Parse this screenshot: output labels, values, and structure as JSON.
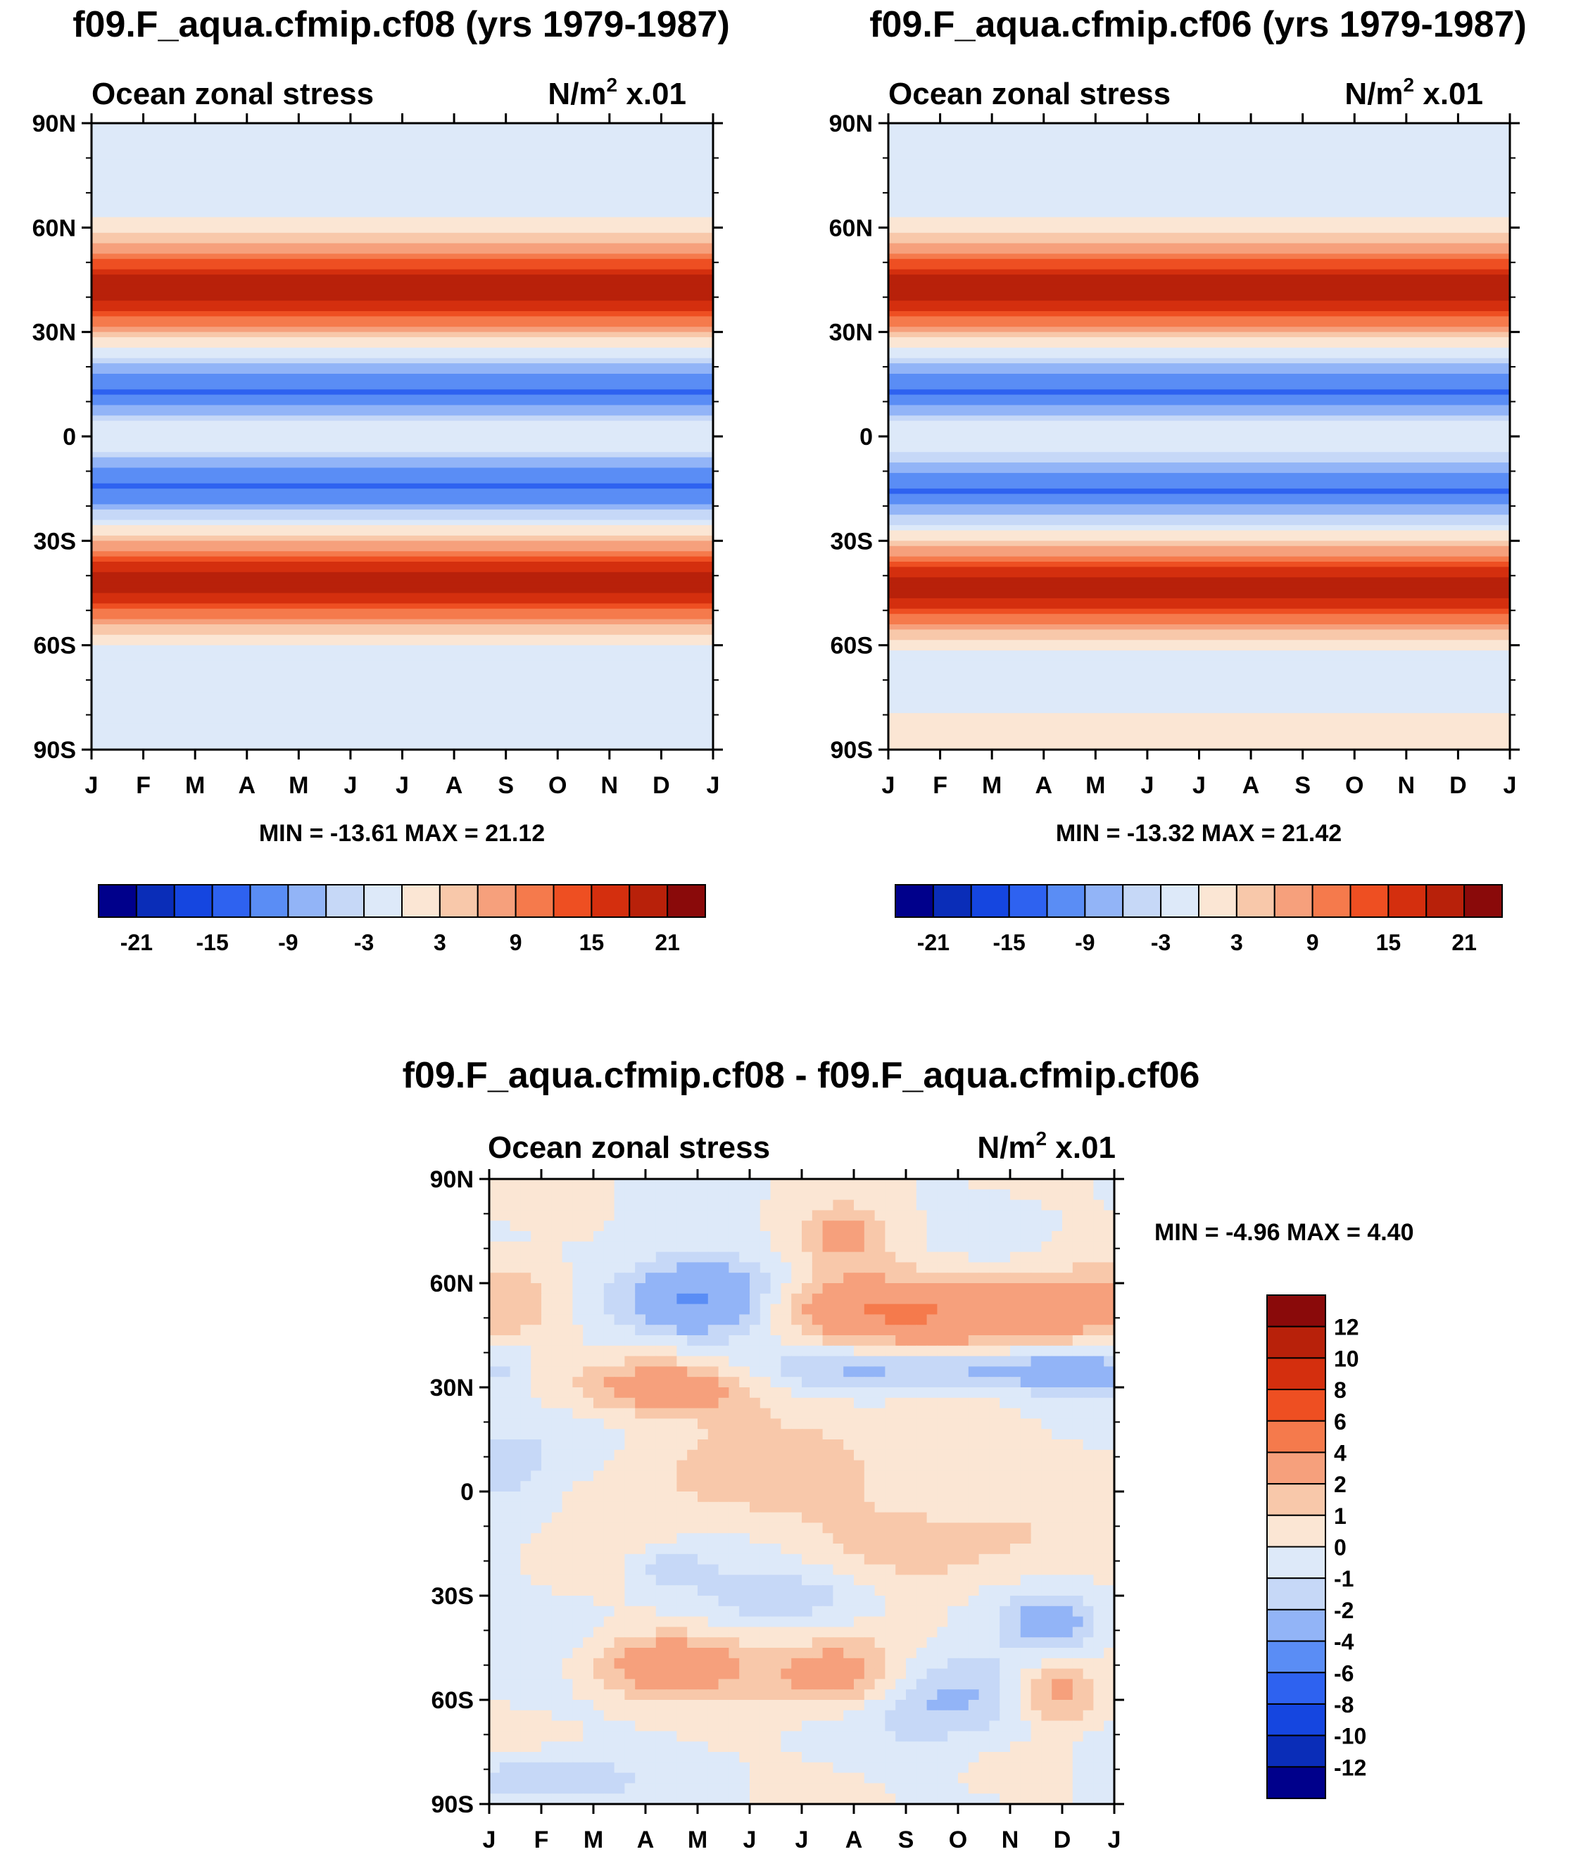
{
  "colors": {
    "main_levels": [
      "#00008b",
      "#0a2db8",
      "#1546e0",
      "#2e62f0",
      "#5a8df5",
      "#92b4f7",
      "#c6d8f7",
      "#dde9f9",
      "#fbe6d4",
      "#f8c8aa",
      "#f6a07c",
      "#f57a4c",
      "#ee4f22",
      "#d42f0e",
      "#b8210a",
      "#8a0a0a"
    ],
    "diff_levels": [
      "#00008b",
      "#0a2db8",
      "#1546e0",
      "#2e62f0",
      "#5a8df5",
      "#92b4f7",
      "#c6d8f7",
      "#dde9f9",
      "#fbe6d4",
      "#f8c8aa",
      "#f6a07c",
      "#f57a4c",
      "#ee4f22",
      "#d42f0e",
      "#b8210a",
      "#8a0a0a"
    ]
  },
  "chart_data": [
    {
      "type": "heatmap",
      "id": "panel_cf08",
      "title": "f09.F_aqua.cfmip.cf08 (yrs 1979-1987)",
      "left_label": "Ocean zonal stress",
      "units_pre": "N/m",
      "units_sup": "2",
      "units_post": " x.01",
      "min_max_text": "MIN = -13.61 MAX =  21.12",
      "min": -13.61,
      "max": 21.12,
      "xlabel": "",
      "ylabel": "",
      "x_ticks": [
        "J",
        "F",
        "M",
        "A",
        "M",
        "J",
        "J",
        "A",
        "S",
        "O",
        "N",
        "D",
        "J"
      ],
      "y_ticks": [
        "90N",
        "60N",
        "30N",
        "0",
        "30S",
        "60S",
        "90S"
      ],
      "ylim": [
        -90,
        90
      ],
      "colorbar_labels": [
        "-21",
        "-15",
        "-9",
        "-3",
        "3",
        "9",
        "15",
        "21"
      ],
      "latitude_profile": [
        [
          -90,
          -1.5
        ],
        [
          -80,
          -1.2
        ],
        [
          -70,
          -1.0
        ],
        [
          -62,
          -0.5
        ],
        [
          -58,
          1
        ],
        [
          -54,
          6
        ],
        [
          -50,
          12
        ],
        [
          -46,
          17
        ],
        [
          -42,
          20
        ],
        [
          -38,
          17
        ],
        [
          -34,
          11
        ],
        [
          -30,
          5
        ],
        [
          -26,
          0
        ],
        [
          -22,
          -5
        ],
        [
          -19,
          -9
        ],
        [
          -15,
          -12.5
        ],
        [
          -11,
          -11
        ],
        [
          -7,
          -7
        ],
        [
          -4,
          -3
        ],
        [
          0,
          -1
        ],
        [
          4,
          -3
        ],
        [
          8,
          -8
        ],
        [
          12,
          -12.5
        ],
        [
          16,
          -11
        ],
        [
          20,
          -7
        ],
        [
          24,
          -2
        ],
        [
          28,
          3
        ],
        [
          32,
          9
        ],
        [
          36,
          15
        ],
        [
          40,
          19
        ],
        [
          44,
          20
        ],
        [
          48,
          16
        ],
        [
          52,
          10
        ],
        [
          56,
          5
        ],
        [
          60,
          1.5
        ],
        [
          65,
          -0.5
        ],
        [
          72,
          -1.5
        ],
        [
          80,
          -1.5
        ],
        [
          90,
          -1.0
        ]
      ]
    },
    {
      "type": "heatmap",
      "id": "panel_cf06",
      "title": "f09.F_aqua.cfmip.cf06 (yrs 1979-1987)",
      "left_label": "Ocean zonal stress",
      "units_pre": "N/m",
      "units_sup": "2",
      "units_post": " x.01",
      "min_max_text": "MIN = -13.32 MAX =  21.42",
      "min": -13.32,
      "max": 21.42,
      "xlabel": "",
      "ylabel": "",
      "x_ticks": [
        "J",
        "F",
        "M",
        "A",
        "M",
        "J",
        "J",
        "A",
        "S",
        "O",
        "N",
        "D",
        "J"
      ],
      "y_ticks": [
        "90N",
        "60N",
        "30N",
        "0",
        "30S",
        "60S",
        "90S"
      ],
      "ylim": [
        -90,
        90
      ],
      "colorbar_labels": [
        "-21",
        "-15",
        "-9",
        "-3",
        "3",
        "9",
        "15",
        "21"
      ],
      "latitude_profile": [
        [
          -90,
          0.5
        ],
        [
          -82,
          0.5
        ],
        [
          -75,
          -1.0
        ],
        [
          -66,
          -1.0
        ],
        [
          -60,
          0.5
        ],
        [
          -56,
          5
        ],
        [
          -52,
          11
        ],
        [
          -48,
          16
        ],
        [
          -44,
          20
        ],
        [
          -40,
          18
        ],
        [
          -36,
          12
        ],
        [
          -32,
          6
        ],
        [
          -28,
          1
        ],
        [
          -24,
          -4
        ],
        [
          -20,
          -9
        ],
        [
          -16,
          -12.5
        ],
        [
          -12,
          -11
        ],
        [
          -8,
          -7
        ],
        [
          -4,
          -3
        ],
        [
          0,
          -1
        ],
        [
          4,
          -3
        ],
        [
          8,
          -8
        ],
        [
          12,
          -12.5
        ],
        [
          16,
          -11
        ],
        [
          20,
          -7
        ],
        [
          24,
          -2
        ],
        [
          28,
          3
        ],
        [
          32,
          9
        ],
        [
          36,
          15
        ],
        [
          40,
          19
        ],
        [
          44,
          20.5
        ],
        [
          48,
          16
        ],
        [
          52,
          10
        ],
        [
          56,
          5
        ],
        [
          60,
          1.5
        ],
        [
          64,
          -0.5
        ],
        [
          72,
          -1.5
        ],
        [
          80,
          -1.2
        ],
        [
          90,
          -1.0
        ]
      ]
    },
    {
      "type": "heatmap",
      "id": "panel_diff",
      "title": "f09.F_aqua.cfmip.cf08 - f09.F_aqua.cfmip.cf06",
      "left_label": "Ocean zonal stress",
      "units_pre": "N/m",
      "units_sup": "2",
      "units_post": " x.01",
      "min_max_text": "MIN =  -4.96 MAX =   4.40",
      "min": -4.96,
      "max": 4.4,
      "xlabel": "",
      "ylabel": "",
      "x_ticks": [
        "J",
        "F",
        "M",
        "A",
        "M",
        "J",
        "J",
        "A",
        "S",
        "O",
        "N",
        "D",
        "J"
      ],
      "y_ticks": [
        "90N",
        "60N",
        "30N",
        "0",
        "30S",
        "60S",
        "90S"
      ],
      "ylim": [
        -90,
        90
      ],
      "colorbar_labels": [
        "12",
        "10",
        "8",
        "6",
        "4",
        "2",
        "1",
        "0",
        "-1",
        "-2",
        "-4",
        "-6",
        "-8",
        "-10",
        "-12"
      ],
      "features": [
        {
          "month": 4.0,
          "lat": 55,
          "amp": -5.0,
          "smonth": 1.1,
          "slat": 8
        },
        {
          "month": 3.3,
          "lat": 30,
          "amp": 3.5,
          "smonth": 1.2,
          "slat": 6
        },
        {
          "month": 7.0,
          "lat": 52,
          "amp": 3.5,
          "smonth": 1.5,
          "slat": 7
        },
        {
          "month": 10.5,
          "lat": 52,
          "amp": 3.0,
          "smonth": 2.0,
          "slat": 8
        },
        {
          "month": 6.8,
          "lat": 73,
          "amp": 2.0,
          "smonth": 0.6,
          "slat": 6
        },
        {
          "month": 0.3,
          "lat": 55,
          "amp": 2.5,
          "smonth": 0.8,
          "slat": 8
        },
        {
          "month": 8.5,
          "lat": 35,
          "amp": -2.5,
          "smonth": 2.5,
          "slat": 4
        },
        {
          "month": 3.4,
          "lat": -50,
          "amp": 3.5,
          "smonth": 1.0,
          "slat": 6
        },
        {
          "month": 6.7,
          "lat": -53,
          "amp": 3.5,
          "smonth": 0.9,
          "slat": 7
        },
        {
          "month": 10.9,
          "lat": -58,
          "amp": 3.0,
          "smonth": 0.6,
          "slat": 6
        },
        {
          "month": 9.0,
          "lat": -60,
          "amp": -2.5,
          "smonth": 1.2,
          "slat": 9
        },
        {
          "month": 10.8,
          "lat": -37,
          "amp": -2.5,
          "smonth": 0.6,
          "slat": 5
        },
        {
          "month": 6.0,
          "lat": -30,
          "amp": -1.5,
          "smonth": 1.4,
          "slat": 6
        },
        {
          "month": 1.0,
          "lat": -83,
          "amp": -2.5,
          "smonth": 1.1,
          "slat": 5
        },
        {
          "month": 0.5,
          "lat": 10,
          "amp": -1.5,
          "smonth": 1.0,
          "slat": 12
        },
        {
          "month": 5.5,
          "lat": 5,
          "amp": 1.5,
          "smonth": 2.5,
          "slat": 10
        },
        {
          "month": 8.5,
          "lat": -15,
          "amp": 1.5,
          "smonth": 1.6,
          "slat": 8
        },
        {
          "month": 3.4,
          "lat": -22,
          "amp": -1.5,
          "smonth": 0.5,
          "slat": 4
        },
        {
          "month": 0.2,
          "lat": 36,
          "amp": -1.5,
          "smonth": 0.4,
          "slat": 5
        },
        {
          "month": 11.2,
          "lat": 35,
          "amp": -1.5,
          "smonth": 1.2,
          "slat": 5
        }
      ]
    }
  ]
}
